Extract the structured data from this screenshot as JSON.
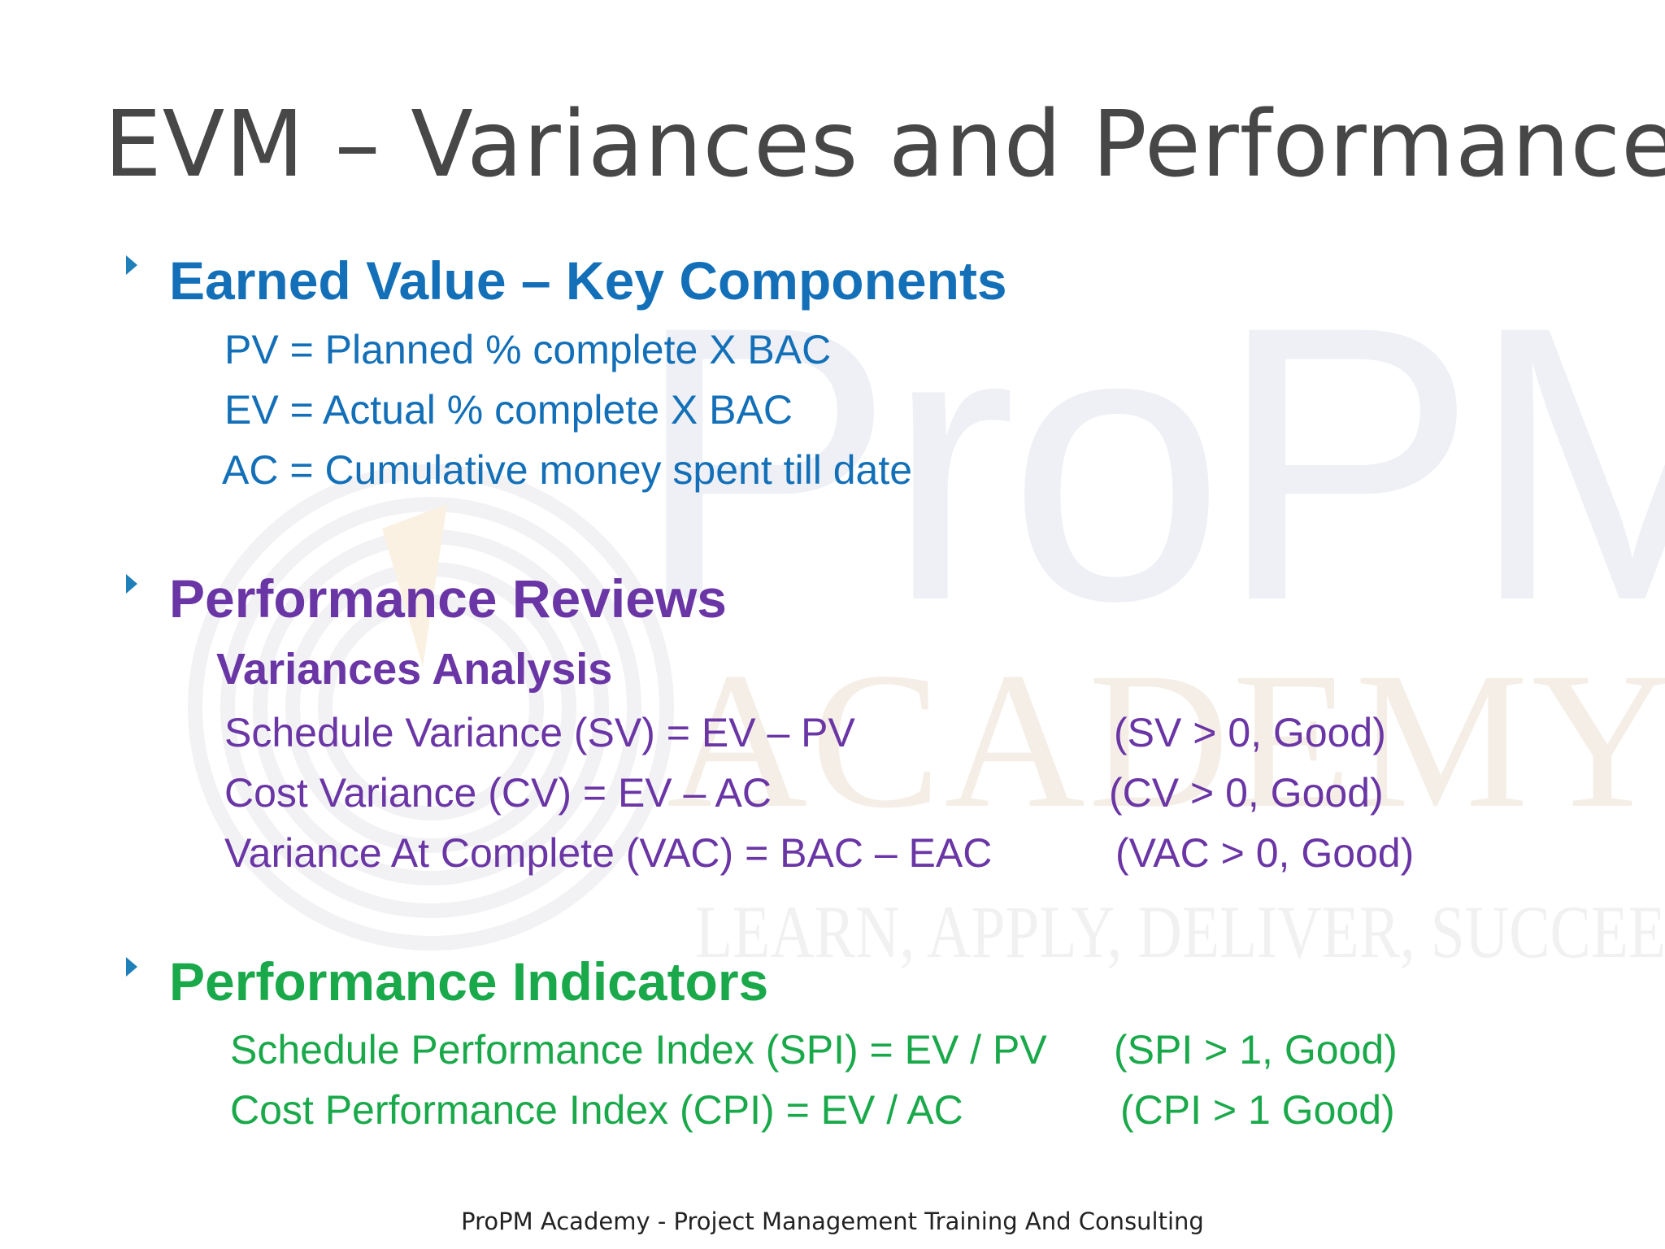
{
  "slide": {
    "title": "EVM – Variances and Performance",
    "watermark": {
      "brand": "ProPM",
      "academy": "ACADEMY",
      "tagline": "LEARN, APPLY, DELIVER, SUCCEED"
    },
    "sections": [
      {
        "heading": "Earned Value – Key Components",
        "color": "#1370b8",
        "lines": [
          "PV = Planned % complete X BAC",
          "EV = Actual % complete X BAC",
          "AC = Cumulative money spent till date"
        ]
      },
      {
        "heading": "Performance Reviews",
        "color": "#6a35a5",
        "subheading": "Variances Analysis",
        "rows": [
          {
            "formula": "Schedule Variance (SV)  = EV – PV",
            "condition": "(SV > 0, Good)"
          },
          {
            "formula": "Cost Variance (CV) = EV – AC",
            "condition": "(CV > 0, Good)"
          },
          {
            "formula": "Variance At Complete (VAC) =  BAC – EAC",
            "condition": "(VAC  > 0, Good)"
          }
        ]
      },
      {
        "heading": "Performance Indicators",
        "color": "#1aa94a",
        "rows": [
          {
            "formula": "Schedule Performance Index (SPI) = EV / PV",
            "condition": "(SPI > 1, Good)"
          },
          {
            "formula": "Cost Performance Index (CPI) = EV / AC",
            "condition": "(CPI > 1 Good)"
          }
        ]
      }
    ],
    "footer": "ProPM Academy - Project Management Training And Consulting"
  }
}
